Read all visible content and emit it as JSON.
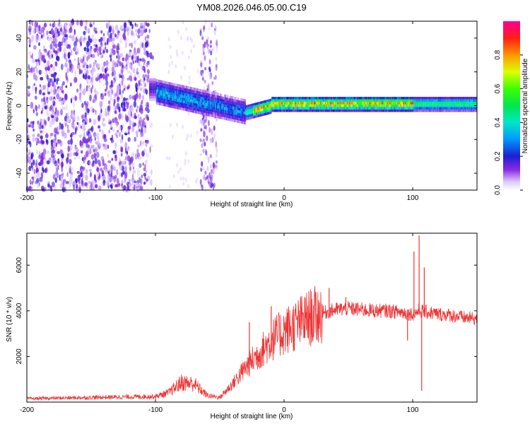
{
  "title": "YM08.2026.046.05.00.C19",
  "chart_data": [
    {
      "type": "heatmap",
      "name": "spectrogram",
      "xlabel": "Height of straight line (km)",
      "ylabel": "Frequency (Hz)",
      "xlim": [
        -200,
        150
      ],
      "ylim": [
        -50,
        50
      ],
      "xticks": [
        -200,
        -100,
        0,
        100
      ],
      "yticks": [
        -40,
        -20,
        0,
        20,
        40
      ],
      "colorbar": {
        "label": "Normalized spectral amplitude",
        "range": [
          0,
          1
        ],
        "ticks": [
          "0.0",
          "0.2",
          "0.4",
          "0.6",
          "0.8"
        ],
        "tick_values": [
          0.0,
          0.2,
          0.4,
          0.6,
          0.8
        ]
      },
      "features": {
        "noise_region_km": [
          -200,
          -105
        ],
        "noise_band_km": [
          -65,
          -52
        ],
        "transition_km": [
          -100,
          -30
        ],
        "signal_band_center_hz": 0,
        "signal_start_freq_hz": 8,
        "signal_peak_km": [
          -25,
          100
        ]
      }
    },
    {
      "type": "line",
      "name": "snr",
      "xlabel": "Height of straight line (km)",
      "ylabel": "SNR (10 * v/v)",
      "xlim": [
        -200,
        150
      ],
      "ylim": [
        0,
        7400
      ],
      "xticks": [
        -200,
        -100,
        0,
        100
      ],
      "yticks": [
        2000,
        4000,
        6000
      ],
      "color": "#ee3333",
      "envelope": {
        "x": [
          -200,
          -100,
          -90,
          -80,
          -70,
          -60,
          -50,
          -40,
          -30,
          -20,
          -10,
          0,
          10,
          20,
          30,
          40,
          50,
          60,
          70,
          80,
          90,
          95,
          100,
          105,
          110,
          120,
          130,
          140,
          150
        ],
        "y": [
          150,
          250,
          400,
          850,
          800,
          300,
          200,
          800,
          1500,
          2100,
          2700,
          3100,
          3400,
          3700,
          3900,
          4050,
          4100,
          4050,
          4000,
          4000,
          3950,
          3900,
          3850,
          4000,
          3950,
          3850,
          3800,
          3700,
          3650
        ]
      },
      "spikes": [
        {
          "x": 105,
          "y": 7300
        },
        {
          "x": 101,
          "y": 6600
        },
        {
          "x": 107,
          "y": 500
        },
        {
          "x": 109,
          "y": 5900
        },
        {
          "x": 96,
          "y": 2700
        },
        {
          "x": 48,
          "y": 4600
        },
        {
          "x": 35,
          "y": 5000
        },
        {
          "x": -27,
          "y": 3500
        },
        {
          "x": -10,
          "y": 4200
        }
      ]
    }
  ]
}
